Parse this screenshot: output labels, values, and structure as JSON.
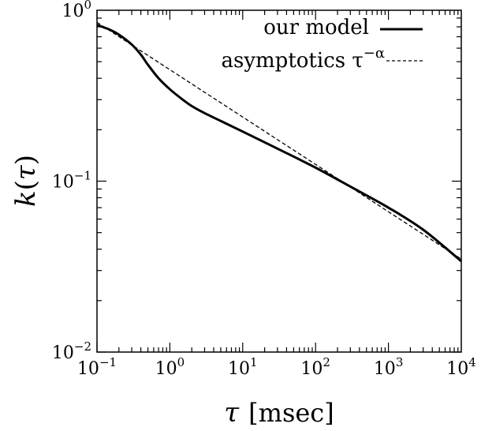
{
  "chart_data": {
    "type": "line",
    "title": "",
    "xlabel_symbol": "τ",
    "xlabel_unit": "[msec]",
    "ylabel_func": "k",
    "ylabel_arg": "τ",
    "x_scale": "log",
    "y_scale": "log",
    "xlim": [
      0.1,
      10000
    ],
    "ylim": [
      0.01,
      1
    ],
    "grid": false,
    "legend_position": "top-right",
    "x_ticks": [
      {
        "base": "10",
        "exp": "−1",
        "value": 0.1
      },
      {
        "base": "10",
        "exp": "0",
        "value": 1
      },
      {
        "base": "10",
        "exp": "1",
        "value": 10
      },
      {
        "base": "10",
        "exp": "2",
        "value": 100
      },
      {
        "base": "10",
        "exp": "3",
        "value": 1000
      },
      {
        "base": "10",
        "exp": "4",
        "value": 10000
      }
    ],
    "y_ticks": [
      {
        "base": "10",
        "exp": "−2",
        "value": 0.01
      },
      {
        "base": "10",
        "exp": "−1",
        "value": 0.1
      },
      {
        "base": "10",
        "exp": "0",
        "value": 1
      }
    ],
    "series": [
      {
        "name": "our model",
        "style": "solid",
        "x": [
          0.1,
          0.15,
          0.2,
          0.3,
          0.4,
          0.5,
          0.7,
          1.0,
          1.5,
          2,
          3,
          5,
          10,
          30,
          100,
          300,
          1000,
          3000,
          10000
        ],
        "y": [
          0.82,
          0.77,
          0.72,
          0.63,
          0.55,
          0.48,
          0.4,
          0.345,
          0.3,
          0.275,
          0.25,
          0.225,
          0.195,
          0.155,
          0.12,
          0.093,
          0.07,
          0.052,
          0.034
        ]
      },
      {
        "name": "asymptotics τ^−α",
        "name_main": "asymptotics τ",
        "name_exp": "−α",
        "style": "dashed",
        "x": [
          0.1,
          10000
        ],
        "y": [
          0.85,
          0.035
        ]
      }
    ]
  }
}
